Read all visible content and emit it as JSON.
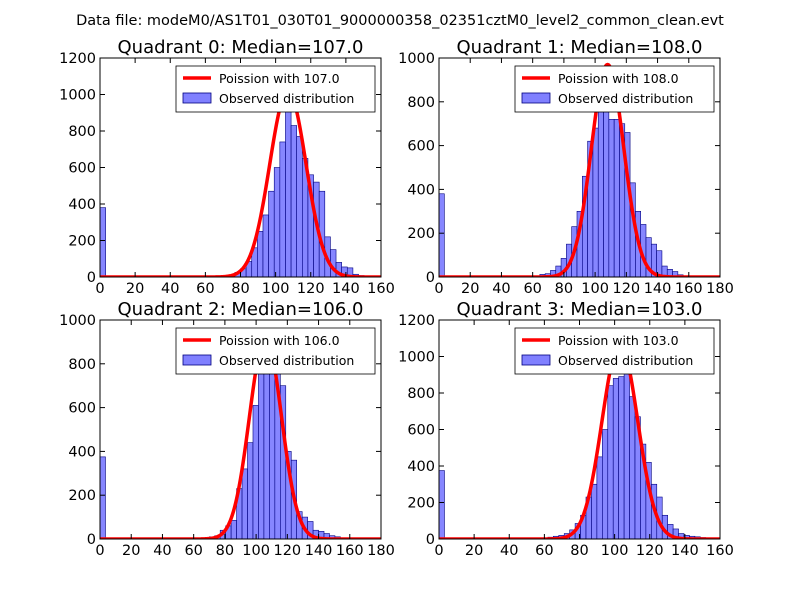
{
  "figure": {
    "suptitle": "Data file: modeM0/AS1T01_030T01_9000000358_02351cztM0_level2_common_clean.evt",
    "colors": {
      "curve": "#ff0000",
      "bar_fill": "#8080ff",
      "bar_edge": "#000080",
      "axes": "#000000",
      "background": "#ffffff"
    }
  },
  "chart_data": [
    {
      "type": "bar",
      "title": "Quadrant 0: Median=107.0",
      "xlim": [
        0,
        160
      ],
      "ylim": [
        0,
        1200
      ],
      "xticks": [
        0,
        20,
        40,
        60,
        80,
        100,
        120,
        140,
        160
      ],
      "yticks": [
        0,
        200,
        400,
        600,
        800,
        1000,
        1200
      ],
      "legend": {
        "location": "top-right",
        "curve_label": "Poission with 107.0",
        "bar_label": "Observed distribution"
      },
      "poisson_mean": 107.0,
      "curve_peak": 1020,
      "bin_width": 3.2,
      "bins": [
        [
          0,
          380
        ],
        [
          3.2,
          5
        ],
        [
          6.4,
          5
        ],
        [
          9.6,
          5
        ],
        [
          12.8,
          5
        ],
        [
          16,
          5
        ],
        [
          19.2,
          5
        ],
        [
          22.4,
          5
        ],
        [
          25.6,
          5
        ],
        [
          28.8,
          5
        ],
        [
          32,
          5
        ],
        [
          35.2,
          5
        ],
        [
          38.4,
          5
        ],
        [
          41.6,
          5
        ],
        [
          44.8,
          5
        ],
        [
          48,
          5
        ],
        [
          51.2,
          5
        ],
        [
          54.4,
          5
        ],
        [
          57.6,
          5
        ],
        [
          60.8,
          5
        ],
        [
          64,
          5
        ],
        [
          67.2,
          5
        ],
        [
          70.4,
          8
        ],
        [
          73.6,
          12
        ],
        [
          76.8,
          25
        ],
        [
          80,
          45
        ],
        [
          83.2,
          85
        ],
        [
          86.4,
          160
        ],
        [
          89.6,
          250
        ],
        [
          92.8,
          340
        ],
        [
          96,
          470
        ],
        [
          99.2,
          600
        ],
        [
          102.4,
          740
        ],
        [
          105.6,
          1000
        ],
        [
          108.8,
          830
        ],
        [
          112,
          770
        ],
        [
          115.2,
          650
        ],
        [
          118.4,
          560
        ],
        [
          121.6,
          520
        ],
        [
          124.8,
          470
        ],
        [
          128,
          220
        ],
        [
          131.2,
          150
        ],
        [
          134.4,
          80
        ],
        [
          137.6,
          55
        ],
        [
          140.8,
          50
        ],
        [
          144,
          15
        ],
        [
          147.2,
          8
        ],
        [
          150.4,
          4
        ]
      ]
    },
    {
      "type": "bar",
      "title": "Quadrant 1: Median=108.0",
      "xlim": [
        0,
        180
      ],
      "ylim": [
        0,
        1000
      ],
      "xticks": [
        0,
        20,
        40,
        60,
        80,
        100,
        120,
        140,
        160,
        180
      ],
      "yticks": [
        0,
        200,
        400,
        600,
        800,
        1000
      ],
      "legend": {
        "location": "top-right",
        "curve_label": "Poission with 108.0",
        "bar_label": "Observed distribution"
      },
      "poisson_mean": 108.0,
      "curve_peak": 970,
      "bin_width": 3.4,
      "bins": [
        [
          0,
          380
        ],
        [
          3.4,
          5
        ],
        [
          6.8,
          5
        ],
        [
          10.2,
          5
        ],
        [
          13.6,
          5
        ],
        [
          17,
          5
        ],
        [
          20.4,
          5
        ],
        [
          23.8,
          5
        ],
        [
          27.2,
          5
        ],
        [
          30.6,
          5
        ],
        [
          34,
          5
        ],
        [
          37.4,
          5
        ],
        [
          40.8,
          5
        ],
        [
          44.2,
          5
        ],
        [
          47.6,
          5
        ],
        [
          51,
          5
        ],
        [
          54.4,
          5
        ],
        [
          57.8,
          5
        ],
        [
          61.2,
          5
        ],
        [
          64.6,
          12
        ],
        [
          68,
          15
        ],
        [
          71.4,
          30
        ],
        [
          74.8,
          50
        ],
        [
          78.2,
          85
        ],
        [
          81.6,
          150
        ],
        [
          85,
          230
        ],
        [
          88.4,
          300
        ],
        [
          91.8,
          460
        ],
        [
          95.2,
          620
        ],
        [
          98.6,
          680
        ],
        [
          102,
          780
        ],
        [
          105.4,
          960
        ],
        [
          108.8,
          720
        ],
        [
          112.2,
          720
        ],
        [
          115.6,
          700
        ],
        [
          119,
          660
        ],
        [
          122.4,
          430
        ],
        [
          125.8,
          300
        ],
        [
          129.2,
          240
        ],
        [
          132.6,
          180
        ],
        [
          136,
          150
        ],
        [
          139.4,
          120
        ],
        [
          142.8,
          50
        ],
        [
          146.2,
          35
        ],
        [
          149.6,
          25
        ],
        [
          153,
          10
        ],
        [
          156.4,
          4
        ]
      ]
    },
    {
      "type": "bar",
      "title": "Quadrant 2: Median=106.0",
      "xlim": [
        0,
        180
      ],
      "ylim": [
        0,
        1000
      ],
      "xticks": [
        0,
        20,
        40,
        60,
        80,
        100,
        120,
        140,
        160,
        180
      ],
      "yticks": [
        0,
        200,
        400,
        600,
        800,
        1000
      ],
      "legend": {
        "location": "top-right",
        "curve_label": "Poission with 106.0",
        "bar_label": "Observed distribution"
      },
      "poisson_mean": 106.0,
      "curve_peak": 920,
      "bin_width": 3.5,
      "bins": [
        [
          0,
          375
        ],
        [
          3.5,
          5
        ],
        [
          7,
          5
        ],
        [
          10.5,
          5
        ],
        [
          14,
          5
        ],
        [
          17.5,
          5
        ],
        [
          21,
          5
        ],
        [
          24.5,
          5
        ],
        [
          28,
          5
        ],
        [
          31.5,
          5
        ],
        [
          35,
          5
        ],
        [
          38.5,
          5
        ],
        [
          42,
          5
        ],
        [
          45.5,
          5
        ],
        [
          49,
          5
        ],
        [
          52.5,
          5
        ],
        [
          56,
          5
        ],
        [
          59.5,
          5
        ],
        [
          63,
          5
        ],
        [
          66.5,
          5
        ],
        [
          70,
          10
        ],
        [
          73.5,
          15
        ],
        [
          77,
          40
        ],
        [
          80.5,
          60
        ],
        [
          84,
          85
        ],
        [
          87.5,
          230
        ],
        [
          91,
          320
        ],
        [
          94.5,
          440
        ],
        [
          98,
          610
        ],
        [
          101.5,
          830
        ],
        [
          105,
          900
        ],
        [
          108.5,
          880
        ],
        [
          112,
          840
        ],
        [
          115.5,
          700
        ],
        [
          119,
          400
        ],
        [
          122.5,
          360
        ],
        [
          126,
          125
        ],
        [
          129.5,
          100
        ],
        [
          133,
          80
        ],
        [
          136.5,
          40
        ],
        [
          140,
          35
        ],
        [
          143.5,
          25
        ],
        [
          147,
          15
        ],
        [
          150.5,
          10
        ],
        [
          154,
          5
        ],
        [
          157.5,
          3
        ]
      ]
    },
    {
      "type": "bar",
      "title": "Quadrant 3: Median=103.0",
      "xlim": [
        0,
        160
      ],
      "ylim": [
        0,
        1200
      ],
      "xticks": [
        0,
        20,
        40,
        60,
        80,
        100,
        120,
        140,
        160
      ],
      "yticks": [
        0,
        200,
        400,
        600,
        800,
        1000,
        1200
      ],
      "legend": {
        "location": "top-right",
        "curve_label": "Poission with 103.0",
        "bar_label": "Observed distribution"
      },
      "poisson_mean": 103.0,
      "curve_peak": 1070,
      "bin_width": 3.1,
      "bins": [
        [
          0,
          375
        ],
        [
          3.1,
          5
        ],
        [
          6.2,
          5
        ],
        [
          9.3,
          5
        ],
        [
          12.4,
          5
        ],
        [
          15.5,
          5
        ],
        [
          18.6,
          5
        ],
        [
          21.7,
          5
        ],
        [
          24.8,
          5
        ],
        [
          27.9,
          5
        ],
        [
          31,
          5
        ],
        [
          34.1,
          5
        ],
        [
          37.2,
          5
        ],
        [
          40.3,
          5
        ],
        [
          43.4,
          5
        ],
        [
          46.5,
          5
        ],
        [
          49.6,
          5
        ],
        [
          52.7,
          5
        ],
        [
          55.8,
          5
        ],
        [
          58.9,
          5
        ],
        [
          62,
          10
        ],
        [
          65.1,
          15
        ],
        [
          68.2,
          20
        ],
        [
          71.3,
          30
        ],
        [
          74.4,
          50
        ],
        [
          77.5,
          85
        ],
        [
          80.6,
          130
        ],
        [
          83.7,
          230
        ],
        [
          86.8,
          300
        ],
        [
          89.9,
          450
        ],
        [
          93,
          600
        ],
        [
          96.1,
          840
        ],
        [
          99.2,
          880
        ],
        [
          102.3,
          890
        ],
        [
          105.4,
          1000
        ],
        [
          108.5,
          780
        ],
        [
          111.6,
          670
        ],
        [
          114.7,
          520
        ],
        [
          117.8,
          420
        ],
        [
          120.9,
          300
        ],
        [
          124,
          230
        ],
        [
          127.1,
          130
        ],
        [
          130.2,
          80
        ],
        [
          133.3,
          55
        ],
        [
          136.4,
          30
        ],
        [
          139.5,
          20
        ],
        [
          142.6,
          15
        ],
        [
          145.7,
          12
        ],
        [
          148.8,
          8
        ],
        [
          151.9,
          4
        ]
      ]
    }
  ]
}
